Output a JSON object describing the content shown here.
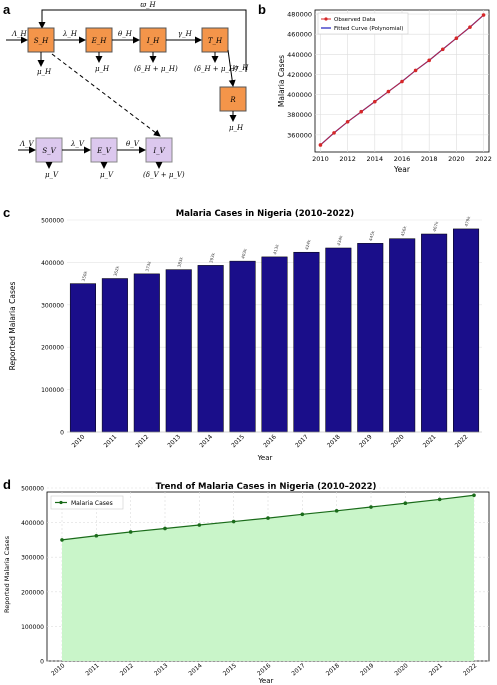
{
  "panels": {
    "a": "a",
    "b": "b",
    "c": "c",
    "d": "d"
  },
  "diagram": {
    "mosquito_nodes": [
      "S_H",
      "E_H",
      "I_H",
      "T_H",
      "R"
    ],
    "mosquito_arrows": {
      "inflow": "Λ_H",
      "se": "λ_H",
      "ei": "θ_H",
      "it": "γ_H",
      "tr": "σ_H",
      "feedback": "ϖ_H",
      "out_s": "μ_H",
      "out_e": "μ_H",
      "out_i": "(δ_H + μ_H)",
      "out_t": "(δ_H + μ_H)",
      "out_r": "μ_H"
    },
    "vector_nodes": [
      "S_V",
      "E_V",
      "I_V"
    ],
    "vector_arrows": {
      "inflow": "Λ_V",
      "se": "λ_V",
      "ei": "θ_V",
      "out_s": "μ_V",
      "out_e": "μ_V",
      "out_i": "(δ_V + μ_V)"
    },
    "colors": {
      "human_box": "#f4954a",
      "vector_box": "#dcc8ee"
    }
  },
  "chart_data": [
    {
      "id": "b",
      "type": "line",
      "title": "",
      "xlabel": "Year",
      "ylabel": "Malaria Cases",
      "x": [
        2010,
        2011,
        2012,
        2013,
        2014,
        2015,
        2016,
        2017,
        2018,
        2019,
        2020,
        2021,
        2022
      ],
      "series": [
        {
          "name": "Observed Data",
          "color": "#d62728",
          "values": [
            350000,
            362000,
            373000,
            383000,
            393000,
            403000,
            413000,
            424000,
            434000,
            445000,
            456000,
            467000,
            479000
          ]
        },
        {
          "name": "Fitted Curve (Polynomial)",
          "color": "#1f1fbf",
          "values": [
            350000,
            362000,
            373000,
            383000,
            393000,
            403000,
            413000,
            424000,
            434000,
            445000,
            456000,
            467000,
            479000
          ]
        }
      ],
      "xticks": [
        "2010",
        "2012",
        "2014",
        "2016",
        "2018",
        "2020",
        "2022"
      ],
      "yticks": [
        "360000",
        "380000",
        "400000",
        "420000",
        "440000",
        "460000",
        "480000"
      ],
      "xlim": [
        2009.6,
        2022.4
      ],
      "ylim": [
        343000,
        484000
      ],
      "legend": "top-left",
      "grid": true
    },
    {
      "id": "c",
      "type": "bar",
      "title": "Malaria Cases in Nigeria (2010–2022)",
      "xlabel": "Year",
      "ylabel": "Reported Malaria Cases",
      "categories": [
        "2010",
        "2011",
        "2012",
        "2013",
        "2014",
        "2015",
        "2016",
        "2017",
        "2018",
        "2019",
        "2020",
        "2021",
        "2022"
      ],
      "values": [
        350000,
        362000,
        373000,
        383000,
        393000,
        403000,
        413000,
        424000,
        434000,
        445000,
        456000,
        467000,
        479000
      ],
      "data_labels": [
        "350k",
        "362k",
        "373k",
        "383k",
        "393k",
        "403k",
        "413k",
        "424k",
        "434k",
        "445k",
        "456k",
        "467k",
        "479k"
      ],
      "yticks": [
        "0",
        "100000",
        "200000",
        "300000",
        "400000",
        "500000"
      ],
      "ylim": [
        0,
        500000
      ],
      "grid": true,
      "bar_color": "#1a0e8a"
    },
    {
      "id": "d",
      "type": "area",
      "title": "Trend of Malaria Cases in Nigeria (2010–2022)",
      "xlabel": "Year",
      "ylabel": "Reported Malaria Cases",
      "categories": [
        "2010",
        "2011",
        "2012",
        "2013",
        "2014",
        "2015",
        "2016",
        "2017",
        "2018",
        "2019",
        "2020",
        "2021",
        "2022"
      ],
      "series": [
        {
          "name": "Malaria Cases",
          "color": "#1a6b1a",
          "values": [
            350000,
            362000,
            373000,
            383000,
            393000,
            403000,
            413000,
            424000,
            434000,
            445000,
            456000,
            467000,
            479000
          ]
        }
      ],
      "yticks": [
        "0",
        "100000",
        "200000",
        "300000",
        "400000",
        "500000"
      ],
      "ylim": [
        0,
        500000
      ],
      "grid": true,
      "legend": "top-left",
      "fill_color": "#c9f5c9"
    }
  ]
}
